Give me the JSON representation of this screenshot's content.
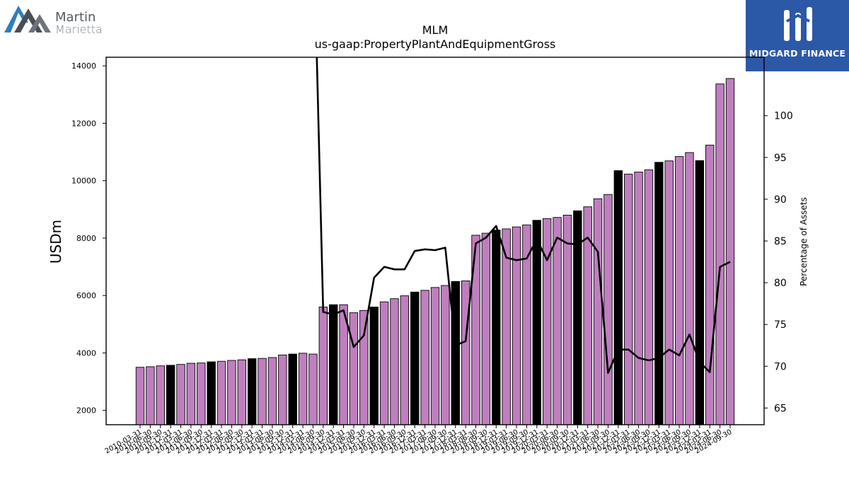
{
  "logos": {
    "left": {
      "line1": "Martin",
      "line2": "Marietta"
    },
    "right": {
      "text": "MIDGARD FINANCE"
    }
  },
  "colors": {
    "bar_primary": "#bf7fbf",
    "bar_highlight": "#000000",
    "line": "#000000"
  },
  "chart_data": {
    "type": "bar",
    "title": "MLM",
    "subtitle": "us-gaap:PropertyPlantAndEquipmentGross",
    "ylabel": "USDm",
    "y2label": "Percentage of Assets",
    "ylim": [
      1500,
      14300
    ],
    "y2lim": [
      63,
      107
    ],
    "yticks": [
      2000,
      4000,
      6000,
      8000,
      10000,
      12000,
      14000
    ],
    "y2ticks": [
      65,
      70,
      75,
      80,
      85,
      90,
      95,
      100
    ],
    "grid": false,
    "categories": [
      "2010-03-31",
      "2010-06-30",
      "2010-09-30",
      "2010-12-31",
      "2011-03-31",
      "2011-06-30",
      "2011-09-30",
      "2011-12-31",
      "2012-03-31",
      "2012-06-30",
      "2012-09-30",
      "2012-12-31",
      "2013-03-31",
      "2013-06-30",
      "2013-09-30",
      "2013-12-31",
      "2014-03-31",
      "2014-06-30",
      "2014-09-30",
      "2014-12-31",
      "2015-03-31",
      "2015-06-30",
      "2015-09-30",
      "2015-12-31",
      "2016-03-31",
      "2016-06-30",
      "2016-09-30",
      "2016-12-31",
      "2017-03-31",
      "2017-06-30",
      "2017-09-30",
      "2017-12-31",
      "2018-03-31",
      "2018-06-30",
      "2018-09-30",
      "2018-12-31",
      "2019-03-31",
      "2019-06-30",
      "2019-09-30",
      "2019-12-31",
      "2020-03-31",
      "2020-06-30",
      "2020-09-30",
      "2020-12-31",
      "2021-03-31",
      "2021-06-30",
      "2021-09-30",
      "2021-12-31",
      "2022-03-31",
      "2022-06-30",
      "2022-09-30",
      "2022-12-31",
      "2023-03-31",
      "2023-06-30",
      "2023-09-30",
      "2023-12-31",
      "2024-03-31",
      "2024-06-30",
      "2024-09-30"
    ],
    "series": [
      {
        "type": "bar",
        "values": [
          3500,
          3520,
          3550,
          3570,
          3600,
          3640,
          3650,
          3690,
          3710,
          3740,
          3760,
          3800,
          3810,
          3840,
          3930,
          3960,
          3990,
          3960,
          5600,
          5680,
          5680,
          5400,
          5480,
          5600,
          5780,
          5890,
          5990,
          6120,
          6180,
          6280,
          6350,
          6490,
          6510,
          8100,
          8170,
          8280,
          8320,
          8390,
          8460,
          8620,
          8680,
          8720,
          8800,
          8950,
          9090,
          9370,
          9520,
          10350,
          10230,
          10300,
          10380,
          10640,
          10690,
          10840,
          10980,
          10700,
          11240,
          13370,
          13560
        ],
        "highlight": [
          false,
          false,
          false,
          true,
          false,
          false,
          false,
          true,
          false,
          false,
          false,
          true,
          false,
          false,
          false,
          true,
          false,
          false,
          false,
          true,
          false,
          false,
          false,
          true,
          false,
          false,
          false,
          true,
          false,
          false,
          false,
          true,
          false,
          false,
          false,
          true,
          false,
          false,
          false,
          true,
          false,
          false,
          false,
          true,
          false,
          false,
          false,
          true,
          false,
          false,
          false,
          true,
          false,
          false,
          false,
          true,
          false,
          false,
          false
        ]
      },
      {
        "type": "line",
        "axis": "right",
        "values": [
          null,
          null,
          null,
          null,
          null,
          null,
          null,
          null,
          null,
          null,
          null,
          null,
          null,
          null,
          null,
          null,
          null,
          125,
          76.5,
          76.2,
          76.7,
          72.3,
          73.7,
          80.6,
          81.9,
          81.6,
          81.6,
          83.8,
          84.0,
          83.9,
          84.2,
          72.5,
          73.0,
          84.7,
          85.4,
          86.8,
          83.0,
          82.7,
          82.9,
          85.2,
          82.7,
          85.4,
          84.7,
          84.6,
          85.4,
          83.7,
          69.2,
          72.0,
          72.0,
          71.0,
          70.7,
          71.0,
          72.0,
          71.3,
          73.8,
          70.5,
          69.3,
          81.9,
          82.5
        ]
      }
    ]
  }
}
